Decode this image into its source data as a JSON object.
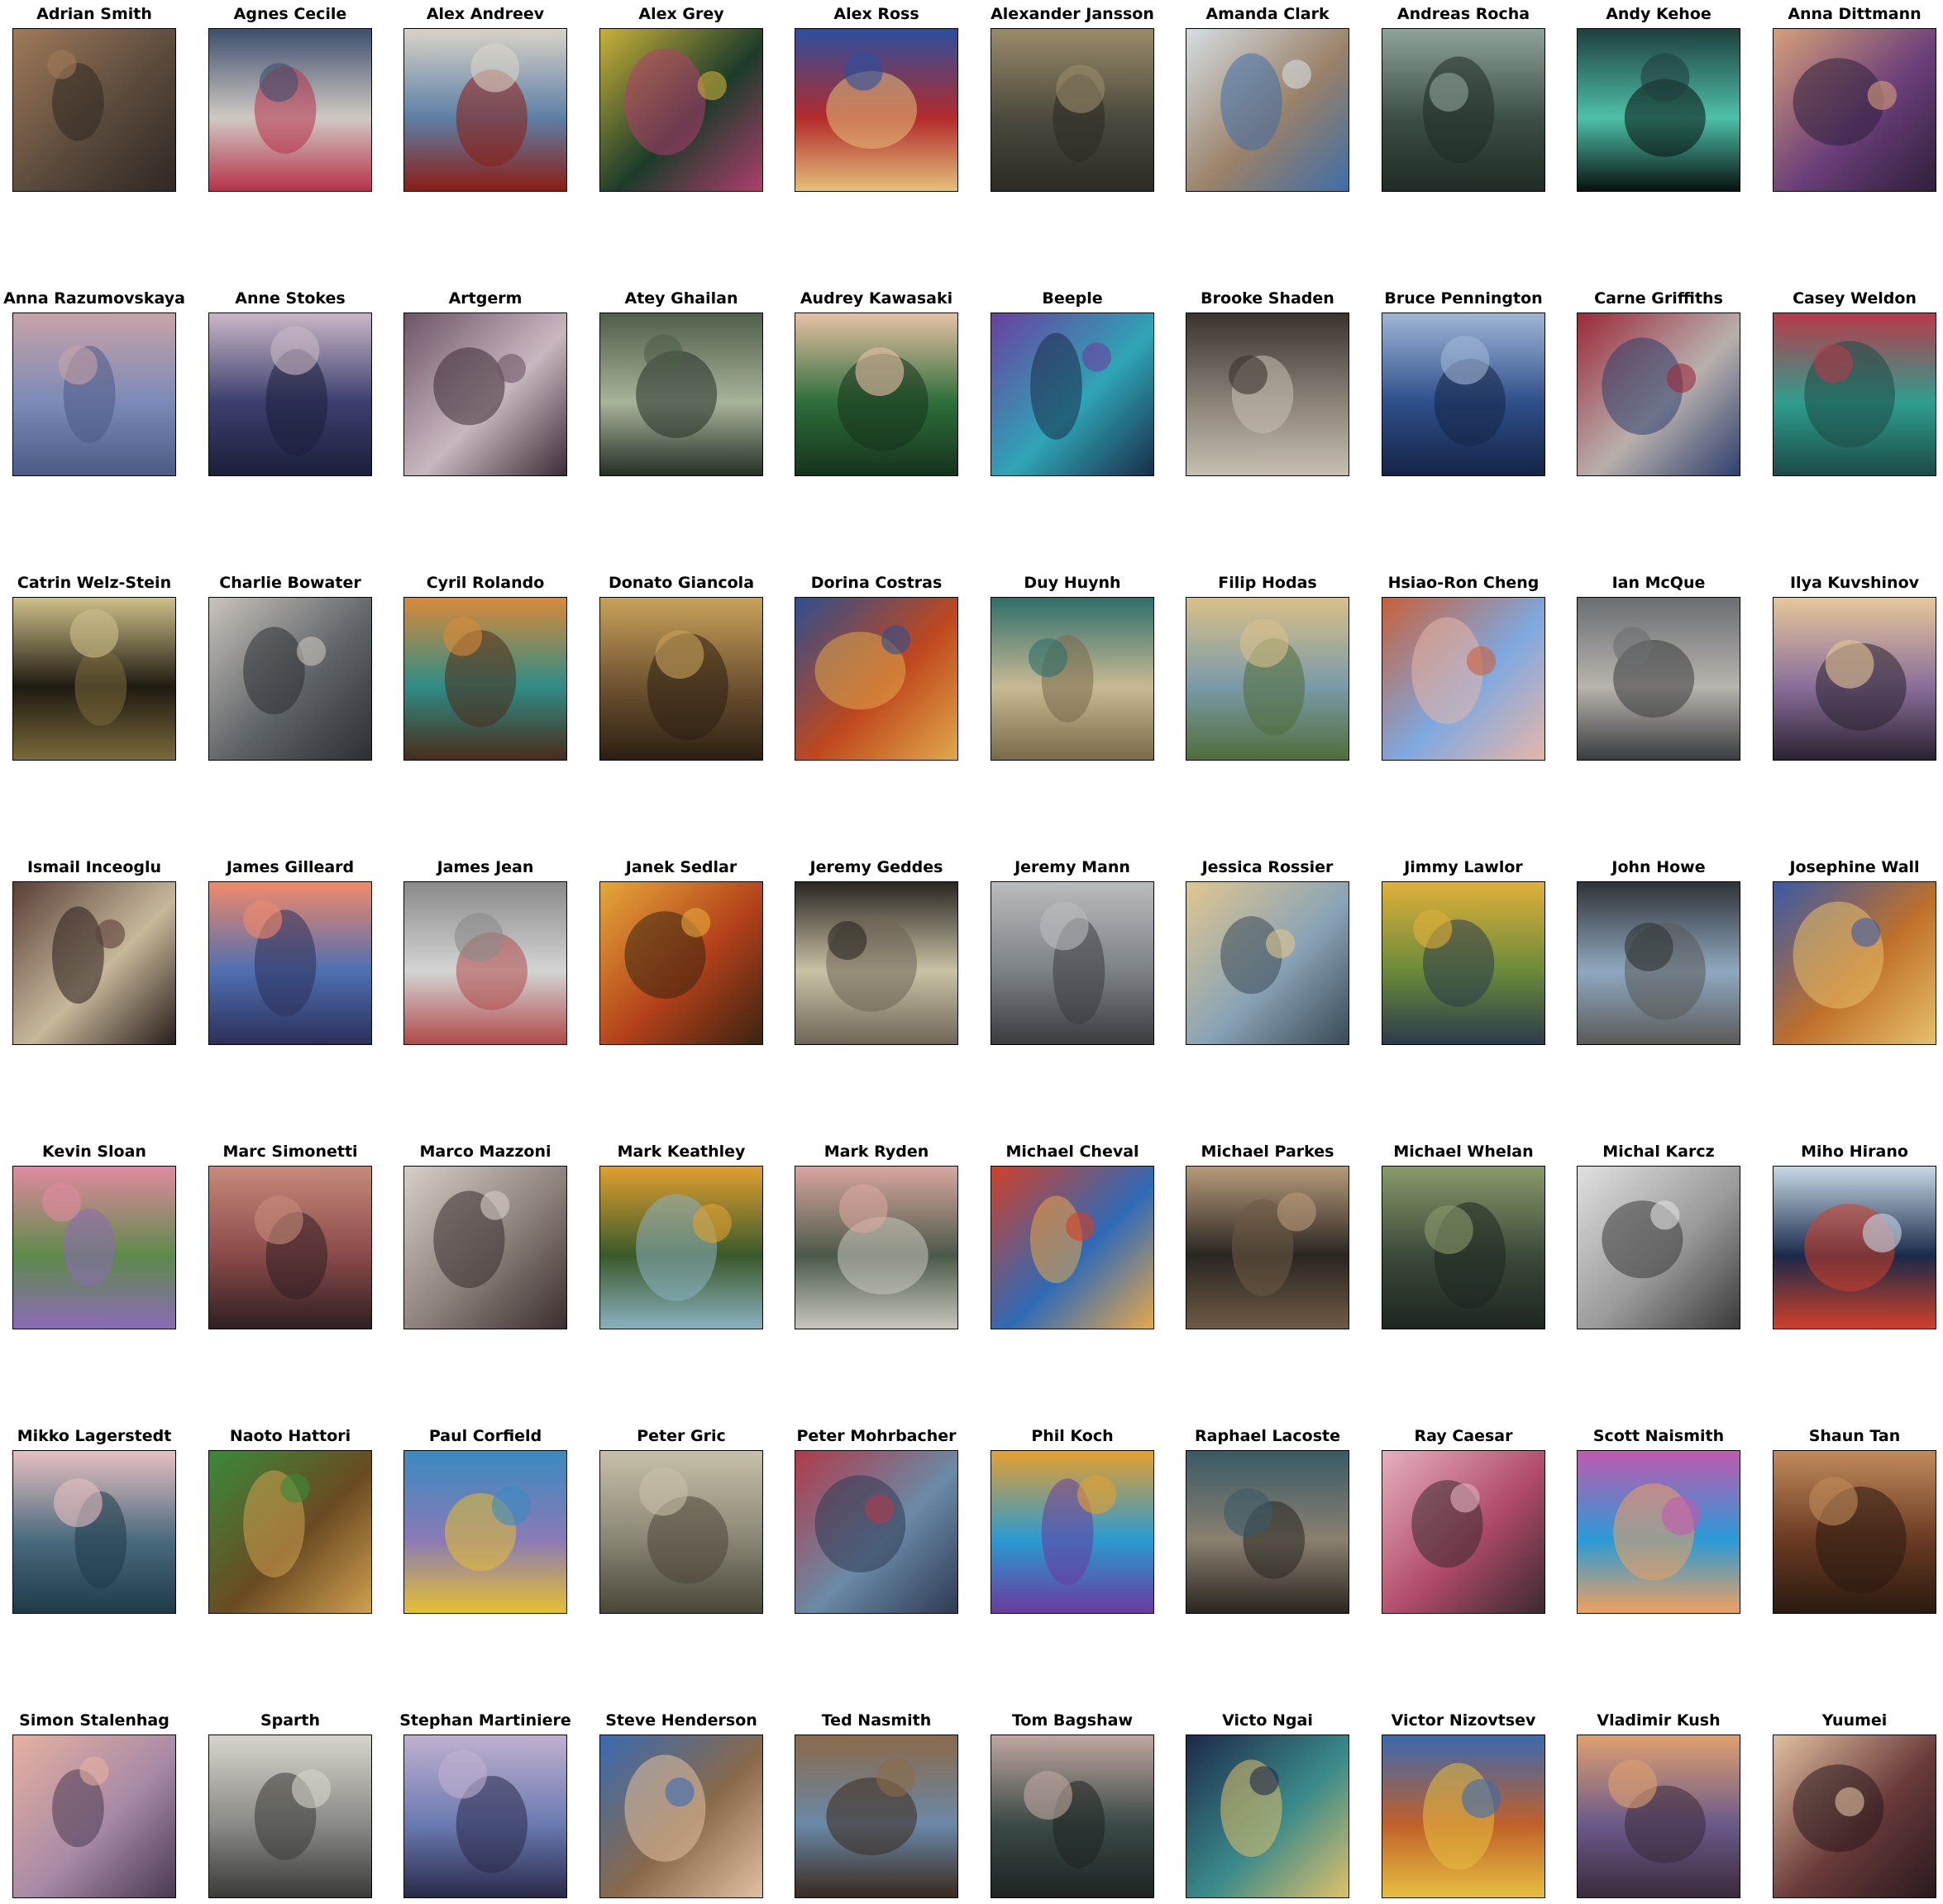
{
  "gallery": {
    "artists": [
      {
        "name": "Adrian Smith",
        "colors": [
          "#5a4a3c",
          "#a07a5a",
          "#2f2823"
        ]
      },
      {
        "name": "Agnes Cecile",
        "colors": [
          "#cfc9c2",
          "#3f4f6e",
          "#b6324a"
        ]
      },
      {
        "name": "Alex Andreev",
        "colors": [
          "#5d7fa6",
          "#d9d3c8",
          "#8a1d14"
        ]
      },
      {
        "name": "Alex Grey",
        "colors": [
          "#1c3b2a",
          "#c9b13a",
          "#b03d6e"
        ]
      },
      {
        "name": "Alex Ross",
        "colors": [
          "#b32b2b",
          "#2c4f9e",
          "#e3c07a"
        ]
      },
      {
        "name": "Alexander Jansson",
        "colors": [
          "#4b4a3d",
          "#9a8b6a",
          "#2c2a22"
        ]
      },
      {
        "name": "Amanda Clark",
        "colors": [
          "#9a8169",
          "#d5dde2",
          "#3f6ea8"
        ]
      },
      {
        "name": "Andreas Rocha",
        "colors": [
          "#3c4f46",
          "#8fa39a",
          "#1f2b26"
        ]
      },
      {
        "name": "Andy Kehoe",
        "colors": [
          "#4ec0a8",
          "#1f3f3d",
          "#07110f"
        ]
      },
      {
        "name": "Anna Dittmann",
        "colors": [
          "#6b3f7a",
          "#d6a07a",
          "#2f1f3b"
        ]
      },
      {
        "name": "Anna Razumovskaya",
        "colors": [
          "#7c8ab8",
          "#c7a3a7",
          "#4c5a86"
        ]
      },
      {
        "name": "Anne Stokes",
        "colors": [
          "#3b3f6e",
          "#c9b7c6",
          "#1b1f3a"
        ]
      },
      {
        "name": "Artgerm",
        "colors": [
          "#c9b7c0",
          "#6e5566",
          "#3c2c36"
        ]
      },
      {
        "name": "Atey Ghailan",
        "colors": [
          "#a8b39a",
          "#4f5f4a",
          "#262f26"
        ]
      },
      {
        "name": "Audrey Kawasaki",
        "colors": [
          "#2d6e3a",
          "#e7c1a6",
          "#15331c"
        ]
      },
      {
        "name": "Beeple",
        "colors": [
          "#2fa5b6",
          "#6a3fa0",
          "#1a2e4a"
        ]
      },
      {
        "name": "Brooke Shaden",
        "colors": [
          "#8b8378",
          "#3a342e",
          "#c6bfb2"
        ]
      },
      {
        "name": "Bruce Pennington",
        "colors": [
          "#2f4f8a",
          "#9fb6d6",
          "#142446"
        ]
      },
      {
        "name": "Carne Griffiths",
        "colors": [
          "#b8b0ad",
          "#9a2a3a",
          "#2f3f6e"
        ]
      },
      {
        "name": "Casey Weldon",
        "colors": [
          "#2f9e8f",
          "#b83a4a",
          "#1c4a46"
        ]
      },
      {
        "name": "Catrin Welz-Stein",
        "colors": [
          "#1e1a10",
          "#cfc08a",
          "#7a6a3a"
        ]
      },
      {
        "name": "Charlie Bowater",
        "colors": [
          "#5f6468",
          "#c9c3bc",
          "#2c2f33"
        ]
      },
      {
        "name": "Cyril Rolando",
        "colors": [
          "#2f8c86",
          "#d98a3a",
          "#4a2c1a"
        ]
      },
      {
        "name": "Donato Giancola",
        "colors": [
          "#6e5230",
          "#c8a25a",
          "#2b1f12"
        ]
      },
      {
        "name": "Dorina Costras",
        "colors": [
          "#c0481e",
          "#2f4f8e",
          "#e0a84a"
        ]
      },
      {
        "name": "Duy Huynh",
        "colors": [
          "#c9b994",
          "#2f6f6a",
          "#7a6a4a"
        ]
      },
      {
        "name": "Filip Hodas",
        "colors": [
          "#7a9aa8",
          "#d9c08a",
          "#4f6e3a"
        ]
      },
      {
        "name": "Hsiao-Ron Cheng",
        "colors": [
          "#7fa8e0",
          "#c8603a",
          "#e7b6a8"
        ]
      },
      {
        "name": "Ian McQue",
        "colors": [
          "#b8b4ae",
          "#6a6e72",
          "#3a3c3e"
        ]
      },
      {
        "name": "Ilya Kuvshinov",
        "colors": [
          "#8a6e9a",
          "#e6c79a",
          "#2a2230"
        ]
      },
      {
        "name": "Ismail Inceoglu",
        "colors": [
          "#c7b89a",
          "#5a3f38",
          "#2a1e1c"
        ]
      },
      {
        "name": "James Gilleard",
        "colors": [
          "#4f6fb0",
          "#f08a6a",
          "#2c2f5a"
        ]
      },
      {
        "name": "James Jean",
        "colors": [
          "#d4d4d4",
          "#8a8a8a",
          "#b04a4a"
        ]
      },
      {
        "name": "Janek Sedlar",
        "colors": [
          "#b3401a",
          "#e6a83a",
          "#3a2410"
        ]
      },
      {
        "name": "Jeremy Geddes",
        "colors": [
          "#c9c2a6",
          "#2a2622",
          "#6e6556"
        ]
      },
      {
        "name": "Jeremy Mann",
        "colors": [
          "#7c8186",
          "#b9bcbe",
          "#3a3c3f"
        ]
      },
      {
        "name": "Jessica Rossier",
        "colors": [
          "#8aa3b6",
          "#e0c690",
          "#3a4a56"
        ]
      },
      {
        "name": "Jimmy Lawlor",
        "colors": [
          "#6a8a3a",
          "#e0b03a",
          "#2c3a4a"
        ]
      },
      {
        "name": "John Howe",
        "colors": [
          "#8fa8c0",
          "#2f3336",
          "#5a5a58"
        ]
      },
      {
        "name": "Josephine Wall",
        "colors": [
          "#c0702a",
          "#3a5aa8",
          "#e6c06a"
        ]
      },
      {
        "name": "Kevin Sloan",
        "colors": [
          "#5f8a4a",
          "#e08aa0",
          "#8a6ab6"
        ]
      },
      {
        "name": "Marc Simonetti",
        "colors": [
          "#8a4a4a",
          "#c68a7a",
          "#2f1f22"
        ]
      },
      {
        "name": "Marco Mazzoni",
        "colors": [
          "#8a7e78",
          "#d6cfc7",
          "#3a2e30"
        ]
      },
      {
        "name": "Mark Keathley",
        "colors": [
          "#3a5a2a",
          "#e0a030",
          "#8ab0c0"
        ]
      },
      {
        "name": "Mark Ryden",
        "colors": [
          "#4a5a48",
          "#d9a6a0",
          "#c8c6bc"
        ]
      },
      {
        "name": "Michael Cheval",
        "colors": [
          "#2f6ab6",
          "#d0402a",
          "#e6a84a"
        ]
      },
      {
        "name": "Michael Parkes",
        "colors": [
          "#2a2622",
          "#b89a7a",
          "#6e5a44"
        ]
      },
      {
        "name": "Michael Whelan",
        "colors": [
          "#3a4a3a",
          "#8a9a6a",
          "#1e2620"
        ]
      },
      {
        "name": "Michal Karcz",
        "colors": [
          "#9a9a9a",
          "#e0e0e0",
          "#3a3a3a"
        ]
      },
      {
        "name": "Miho Hirano",
        "colors": [
          "#1a2a4a",
          "#c8d8e6",
          "#d0402a"
        ]
      },
      {
        "name": "Mikko Lagerstedt",
        "colors": [
          "#4a6a7e",
          "#e6c0c0",
          "#1e3a4a"
        ]
      },
      {
        "name": "Naoto Hattori",
        "colors": [
          "#6a4a22",
          "#3a8a3a",
          "#d0a050"
        ]
      },
      {
        "name": "Paul Corfield",
        "colors": [
          "#8a7ab6",
          "#3a8ac0",
          "#e6c030"
        ]
      },
      {
        "name": "Peter Gric",
        "colors": [
          "#8a8676",
          "#c6c0a8",
          "#4a4638"
        ]
      },
      {
        "name": "Peter Mohrbacher",
        "colors": [
          "#6a8aa6",
          "#b03a4a",
          "#2f3a56"
        ]
      },
      {
        "name": "Phil Koch",
        "colors": [
          "#2a9ad0",
          "#e6a030",
          "#6a3aa0"
        ]
      },
      {
        "name": "Raphael Lacoste",
        "colors": [
          "#8a8070",
          "#3a5a66",
          "#2a2620"
        ]
      },
      {
        "name": "Ray Caesar",
        "colors": [
          "#b04a6a",
          "#e6b0c0",
          "#3a2a30"
        ]
      },
      {
        "name": "Scott Naismith",
        "colors": [
          "#2a9ad6",
          "#c05ab0",
          "#f0a060"
        ]
      },
      {
        "name": "Shaun Tan",
        "colors": [
          "#6a3a22",
          "#c08a5a",
          "#2a1a10"
        ]
      },
      {
        "name": "Simon Stalenhag",
        "colors": [
          "#a88aa6",
          "#e6b0a0",
          "#4a3a52"
        ]
      },
      {
        "name": "Sparth",
        "colors": [
          "#8a8a86",
          "#d6d4cc",
          "#3a3a36"
        ]
      },
      {
        "name": "Stephan Martiniere",
        "colors": [
          "#6a7ab0",
          "#c0b0d0",
          "#2a2a4a"
        ]
      },
      {
        "name": "Steve Henderson",
        "colors": [
          "#8a6a4a",
          "#3a6ab0",
          "#e0c0a0"
        ]
      },
      {
        "name": "Ted Nasmith",
        "colors": [
          "#6a88a8",
          "#8a6a4a",
          "#3a2a1e"
        ]
      },
      {
        "name": "Tom Bagshaw",
        "colors": [
          "#3a4a46",
          "#c0a6a0",
          "#1e2422"
        ]
      },
      {
        "name": "Victo Ngai",
        "colors": [
          "#3a8a8a",
          "#1e2a4a",
          "#e0c06a"
        ]
      },
      {
        "name": "Victor Nizovtsev",
        "colors": [
          "#c0602a",
          "#3a6ab0",
          "#e6c040"
        ]
      },
      {
        "name": "Vladimir Kush",
        "colors": [
          "#6a5a8a",
          "#e0a070",
          "#3a2a3a"
        ]
      },
      {
        "name": "Yuumei",
        "colors": [
          "#6a3a3a",
          "#e0c0a0",
          "#2a1a1e"
        ]
      }
    ]
  }
}
